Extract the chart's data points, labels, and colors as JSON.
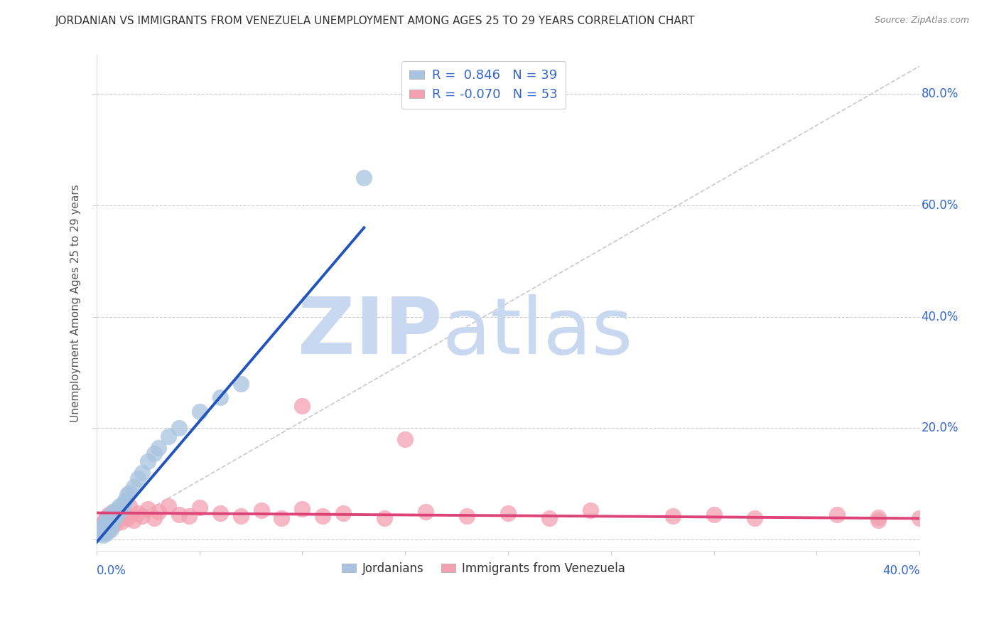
{
  "title": "JORDANIAN VS IMMIGRANTS FROM VENEZUELA UNEMPLOYMENT AMONG AGES 25 TO 29 YEARS CORRELATION CHART",
  "source": "Source: ZipAtlas.com",
  "ylabel": "Unemployment Among Ages 25 to 29 years",
  "ytick_values": [
    0.0,
    0.2,
    0.4,
    0.6,
    0.8
  ],
  "ytick_labels": [
    "0.0%",
    "20.0%",
    "40.0%",
    "60.0%",
    "80.0%"
  ],
  "xlim": [
    0.0,
    0.4
  ],
  "ylim": [
    -0.02,
    0.87
  ],
  "jordanians_color": "#a8c4e0",
  "venezuela_color": "#f4a0b0",
  "jordanians_line_color": "#2255bb",
  "venezuela_line_color": "#dd4477",
  "watermark_zip": "ZIP",
  "watermark_atlas": "atlas",
  "watermark_color_zip": "#c8d8f0",
  "watermark_color_atlas": "#c8d8f0",
  "title_color": "#333333",
  "legend_text_color": "#3366cc",
  "background_color": "#ffffff",
  "grid_color": "#cccccc",
  "diag_color": "#bbbbbb",
  "jordan_x": [
    0.001,
    0.002,
    0.002,
    0.003,
    0.003,
    0.004,
    0.004,
    0.005,
    0.005,
    0.006,
    0.006,
    0.007,
    0.007,
    0.008,
    0.008,
    0.009,
    0.01,
    0.01,
    0.011,
    0.012,
    0.013,
    0.014,
    0.015,
    0.016,
    0.018,
    0.02,
    0.022,
    0.025,
    0.028,
    0.03,
    0.035,
    0.04,
    0.05,
    0.06,
    0.07,
    0.003,
    0.005,
    0.007,
    0.13
  ],
  "jordan_y": [
    0.01,
    0.015,
    0.02,
    0.012,
    0.025,
    0.018,
    0.03,
    0.02,
    0.035,
    0.025,
    0.04,
    0.03,
    0.045,
    0.035,
    0.05,
    0.04,
    0.055,
    0.045,
    0.06,
    0.055,
    0.065,
    0.07,
    0.08,
    0.085,
    0.095,
    0.11,
    0.12,
    0.14,
    0.155,
    0.165,
    0.185,
    0.2,
    0.23,
    0.255,
    0.28,
    0.008,
    0.012,
    0.018,
    0.65
  ],
  "venez_x": [
    0.001,
    0.002,
    0.002,
    0.003,
    0.003,
    0.004,
    0.004,
    0.005,
    0.005,
    0.006,
    0.006,
    0.007,
    0.008,
    0.008,
    0.009,
    0.01,
    0.011,
    0.012,
    0.013,
    0.015,
    0.016,
    0.018,
    0.02,
    0.022,
    0.025,
    0.028,
    0.03,
    0.035,
    0.04,
    0.045,
    0.05,
    0.06,
    0.07,
    0.08,
    0.09,
    0.1,
    0.11,
    0.12,
    0.14,
    0.16,
    0.18,
    0.2,
    0.22,
    0.24,
    0.28,
    0.32,
    0.36,
    0.38,
    0.4,
    0.1,
    0.15,
    0.3,
    0.38
  ],
  "venez_y": [
    0.02,
    0.015,
    0.025,
    0.018,
    0.03,
    0.012,
    0.035,
    0.022,
    0.04,
    0.018,
    0.045,
    0.025,
    0.038,
    0.05,
    0.028,
    0.042,
    0.055,
    0.032,
    0.048,
    0.038,
    0.06,
    0.035,
    0.048,
    0.042,
    0.055,
    0.038,
    0.05,
    0.06,
    0.045,
    0.042,
    0.058,
    0.048,
    0.042,
    0.052,
    0.038,
    0.055,
    0.042,
    0.048,
    0.038,
    0.05,
    0.042,
    0.048,
    0.038,
    0.052,
    0.042,
    0.038,
    0.045,
    0.035,
    0.038,
    0.24,
    0.18,
    0.045,
    0.04
  ],
  "jordan_line_x0": 0.0,
  "jordan_line_y0": -0.005,
  "jordan_line_x1": 0.13,
  "jordan_line_y1": 0.56,
  "venez_line_x0": 0.0,
  "venez_line_y0": 0.048,
  "venez_line_x1": 0.4,
  "venez_line_y1": 0.038
}
